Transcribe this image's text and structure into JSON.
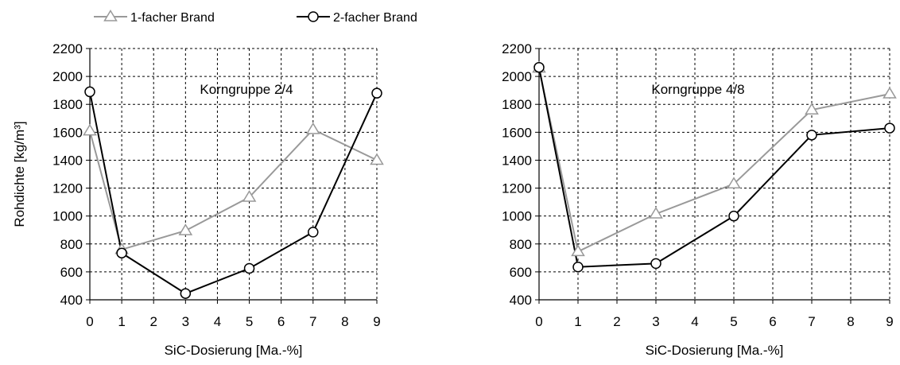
{
  "legend": {
    "items": [
      {
        "label": "1-facher Brand",
        "marker": "triangle",
        "color": "#999999"
      },
      {
        "label": "2-facher Brand",
        "marker": "circle",
        "color": "#000000"
      }
    ]
  },
  "chart_data": [
    {
      "type": "line",
      "annotation": "Korngruppe 2/4",
      "xlabel": "SiC-Dosierung [Ma.-%]",
      "ylabel": "Rohdichte [kg/m³]",
      "xlim": [
        0,
        9
      ],
      "ylim": [
        400,
        2200
      ],
      "xticks": [
        0,
        1,
        2,
        3,
        4,
        5,
        6,
        7,
        8,
        9
      ],
      "yticks": [
        400,
        600,
        800,
        1000,
        1200,
        1400,
        1600,
        1800,
        2000,
        2200
      ],
      "grid": true,
      "x": [
        0,
        1,
        3,
        5,
        7,
        9
      ],
      "series": [
        {
          "name": "1-facher Brand",
          "values": [
            1610,
            760,
            895,
            1135,
            1620,
            1400
          ]
        },
        {
          "name": "2-facher Brand",
          "values": [
            1890,
            735,
            445,
            625,
            885,
            1880
          ]
        }
      ]
    },
    {
      "type": "line",
      "annotation": "Korngruppe 4/8",
      "xlabel": "SiC-Dosierung [Ma.-%]",
      "ylabel": "",
      "xlim": [
        0,
        9
      ],
      "ylim": [
        400,
        2200
      ],
      "xticks": [
        0,
        1,
        2,
        3,
        4,
        5,
        6,
        7,
        8,
        9
      ],
      "yticks": [
        400,
        600,
        800,
        1000,
        1200,
        1400,
        1600,
        1800,
        2000,
        2200
      ],
      "grid": true,
      "x": [
        0,
        1,
        3,
        5,
        7,
        9
      ],
      "series": [
        {
          "name": "1-facher Brand",
          "values": [
            2060,
            745,
            1015,
            1230,
            1760,
            1875
          ]
        },
        {
          "name": "2-facher Brand",
          "values": [
            2065,
            635,
            660,
            1000,
            1580,
            1630
          ]
        }
      ]
    }
  ]
}
